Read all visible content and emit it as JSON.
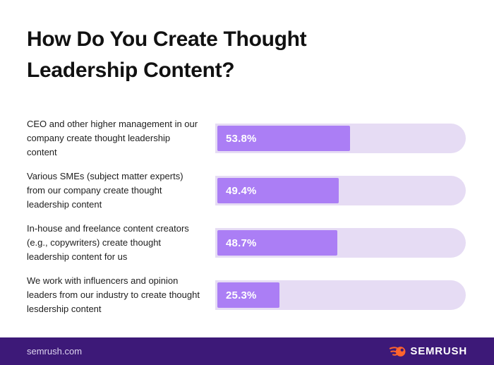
{
  "title": "How Do You Create Thought Leadership Content?",
  "chart_data": {
    "type": "bar",
    "orientation": "horizontal",
    "title": "How Do You Create Thought Leadership Content?",
    "categories": [
      "CEO and other higher management in our company create thought leadership content",
      "Various SMEs (subject matter experts) from our company create thought leadership content",
      "In-house and freelance content creators (e.g., copywriters) create thought leadership content for us",
      "We work with influencers and opinion leaders from our industry to create thought lesdership content"
    ],
    "values": [
      53.8,
      49.4,
      48.7,
      25.3
    ],
    "value_labels": [
      "53.8%",
      "49.4%",
      "48.7%",
      "25.3%"
    ],
    "xlim": [
      0,
      100
    ],
    "grid": false,
    "legend": false,
    "value_label_position": "inside-left"
  },
  "footer": {
    "website": "semrush.com",
    "brand_name": "SEMRUSH",
    "logo_icon": "semrush-flame-icon"
  },
  "colors": {
    "bar_fill": "#ab7ef5",
    "bar_track": "#e6dcf4",
    "footer_bg": "#3d1978",
    "brand_orange": "#ff642d",
    "title_text": "#111111",
    "label_text": "#1e1e1e"
  }
}
